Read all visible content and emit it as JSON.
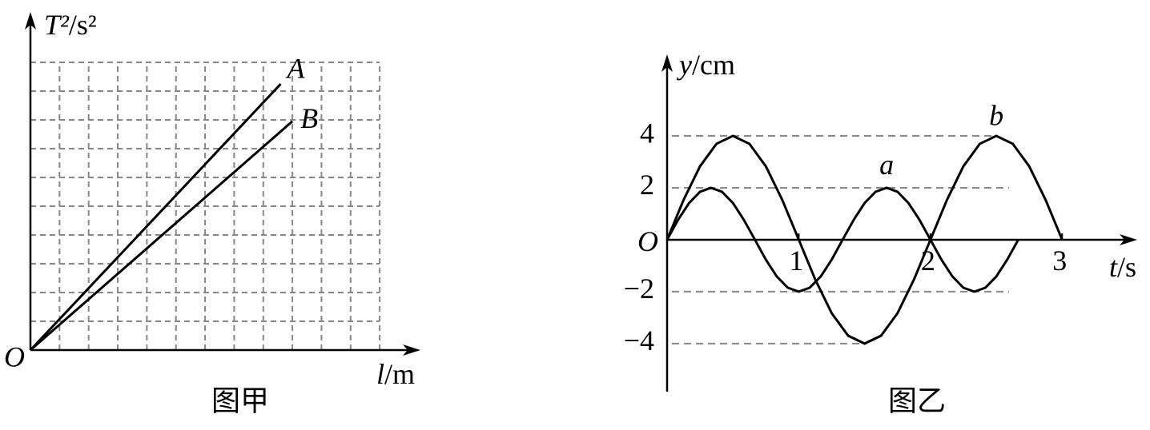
{
  "chart_data": [
    {
      "type": "line",
      "caption": "图甲",
      "origin_label": "O",
      "x_label": "l/m",
      "y_label": "T²/s²",
      "xlim": [
        0,
        13.4
      ],
      "ylim": [
        0,
        11.75
      ],
      "xticks": [
        1,
        2,
        3,
        4,
        5,
        6,
        7,
        8,
        9,
        10,
        11,
        12
      ],
      "yticks": [
        1,
        2,
        3,
        4,
        5,
        6,
        7,
        8,
        9,
        10
      ],
      "grid": true,
      "series": [
        {
          "name": "A",
          "color": "#000000",
          "x": [
            0,
            8.6
          ],
          "values": [
            0,
            9.25
          ]
        },
        {
          "name": "B",
          "color": "#000000",
          "x": [
            0,
            9
          ],
          "values": [
            0,
            7.95
          ]
        }
      ]
    },
    {
      "type": "line",
      "caption": "图乙",
      "origin_label": "O",
      "x_label": "t/s",
      "y_label": "y/cm",
      "xlim": [
        0,
        3.57
      ],
      "ylim": [
        -5.85,
        7.14
      ],
      "xticks": [
        1,
        2,
        3
      ],
      "yticks": [
        {
          "value": -4,
          "label": "−4"
        },
        {
          "value": -2,
          "label": "−2"
        },
        2,
        4
      ],
      "grid": false,
      "series": [
        {
          "name": "a",
          "color": "#000000",
          "x": [
            0,
            0.083,
            0.167,
            0.25,
            0.333,
            0.417,
            0.5,
            0.583,
            0.667,
            0.75,
            0.833,
            0.917,
            1,
            1.083,
            1.167,
            1.25,
            1.333,
            1.417,
            1.5,
            1.583,
            1.667,
            1.75,
            1.833,
            1.917,
            2,
            2.083,
            2.167,
            2.25,
            2.333,
            2.417,
            2.5,
            2.583,
            2.667
          ],
          "values": [
            0,
            0.765,
            1.414,
            1.848,
            2,
            1.848,
            1.414,
            0.765,
            0,
            -0.765,
            -1.414,
            -1.848,
            -2,
            -1.848,
            -1.414,
            -0.765,
            0,
            0.765,
            1.414,
            1.848,
            2,
            1.848,
            1.414,
            0.765,
            0,
            -0.765,
            -1.414,
            -1.848,
            -2,
            -1.848,
            -1.414,
            -0.765,
            0
          ]
        },
        {
          "name": "b",
          "color": "#000000",
          "x": [
            0,
            0.125,
            0.25,
            0.375,
            0.5,
            0.625,
            0.75,
            0.875,
            1,
            1.125,
            1.25,
            1.375,
            1.5,
            1.625,
            1.75,
            1.875,
            2,
            2.125,
            2.25,
            2.375,
            2.5,
            2.625,
            2.75,
            2.875,
            3
          ],
          "values": [
            0,
            1.531,
            2.828,
            3.696,
            4,
            3.696,
            2.828,
            1.531,
            0,
            -1.531,
            -2.828,
            -3.696,
            -4,
            -3.696,
            -2.828,
            -1.531,
            0,
            1.531,
            2.828,
            3.696,
            4,
            3.696,
            2.828,
            1.531,
            0
          ]
        }
      ]
    }
  ]
}
